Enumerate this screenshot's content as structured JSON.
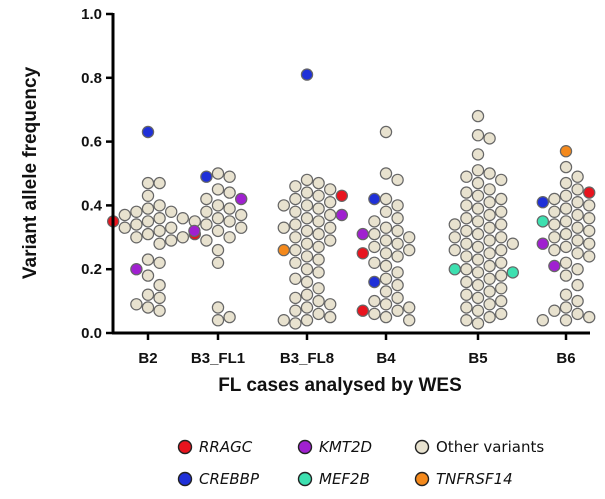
{
  "chart_data": {
    "type": "scatter",
    "title": "",
    "xlabel": "FL cases analysed by WES",
    "ylabel": "Variant allele frequency",
    "ylim": [
      0.0,
      1.0
    ],
    "yticks": [
      "0.0",
      "0.2",
      "0.4",
      "0.6",
      "0.8",
      "1.0"
    ],
    "categories": [
      "B2",
      "B3_FL1",
      "B3_FL8",
      "B4",
      "B5",
      "B6"
    ],
    "grid": false,
    "legend_position": "bottom",
    "series": [
      {
        "name": "RRAGC",
        "color": "#e8141e",
        "italic": true,
        "points": [
          [
            "B2",
            0.35
          ],
          [
            "B3_FL1",
            0.31
          ],
          [
            "B3_FL8",
            0.43
          ],
          [
            "B4",
            0.25
          ],
          [
            "B4",
            0.07
          ],
          [
            "B6",
            0.44
          ]
        ]
      },
      {
        "name": "KMT2D",
        "color": "#a020d0",
        "italic": true,
        "points": [
          [
            "B2",
            0.32
          ],
          [
            "B2",
            0.2
          ],
          [
            "B3_FL1",
            0.42
          ],
          [
            "B3_FL8",
            0.37
          ],
          [
            "B4",
            0.31
          ],
          [
            "B6",
            0.28
          ],
          [
            "B6",
            0.21
          ]
        ]
      },
      {
        "name": "Other variants",
        "color": "#e8e2cf",
        "italic": false,
        "points": [
          [
            "B2",
            0.47
          ],
          [
            "B2",
            0.47
          ],
          [
            "B2",
            0.43
          ],
          [
            "B2",
            0.4
          ],
          [
            "B2",
            0.39
          ],
          [
            "B2",
            0.38
          ],
          [
            "B2",
            0.38
          ],
          [
            "B2",
            0.37
          ],
          [
            "B2",
            0.36
          ],
          [
            "B2",
            0.36
          ],
          [
            "B2",
            0.35
          ],
          [
            "B2",
            0.34
          ],
          [
            "B2",
            0.33
          ],
          [
            "B2",
            0.33
          ],
          [
            "B2",
            0.32
          ],
          [
            "B2",
            0.31
          ],
          [
            "B2",
            0.3
          ],
          [
            "B2",
            0.3
          ],
          [
            "B2",
            0.29
          ],
          [
            "B2",
            0.28
          ],
          [
            "B2",
            0.23
          ],
          [
            "B2",
            0.22
          ],
          [
            "B2",
            0.18
          ],
          [
            "B2",
            0.15
          ],
          [
            "B2",
            0.12
          ],
          [
            "B2",
            0.11
          ],
          [
            "B2",
            0.09
          ],
          [
            "B2",
            0.08
          ],
          [
            "B2",
            0.07
          ],
          [
            "B3_FL1",
            0.5
          ],
          [
            "B3_FL1",
            0.49
          ],
          [
            "B3_FL1",
            0.45
          ],
          [
            "B3_FL1",
            0.44
          ],
          [
            "B3_FL1",
            0.42
          ],
          [
            "B3_FL1",
            0.4
          ],
          [
            "B3_FL1",
            0.39
          ],
          [
            "B3_FL1",
            0.38
          ],
          [
            "B3_FL1",
            0.37
          ],
          [
            "B3_FL1",
            0.36
          ],
          [
            "B3_FL1",
            0.35
          ],
          [
            "B3_FL1",
            0.35
          ],
          [
            "B3_FL1",
            0.34
          ],
          [
            "B3_FL1",
            0.33
          ],
          [
            "B3_FL1",
            0.32
          ],
          [
            "B3_FL1",
            0.3
          ],
          [
            "B3_FL1",
            0.29
          ],
          [
            "B3_FL1",
            0.26
          ],
          [
            "B3_FL1",
            0.22
          ],
          [
            "B3_FL1",
            0.08
          ],
          [
            "B3_FL1",
            0.05
          ],
          [
            "B3_FL1",
            0.04
          ],
          [
            "B3_FL8",
            0.48
          ],
          [
            "B3_FL8",
            0.47
          ],
          [
            "B3_FL8",
            0.46
          ],
          [
            "B3_FL8",
            0.45
          ],
          [
            "B3_FL8",
            0.44
          ],
          [
            "B3_FL8",
            0.43
          ],
          [
            "B3_FL8",
            0.42
          ],
          [
            "B3_FL8",
            0.41
          ],
          [
            "B3_FL8",
            0.4
          ],
          [
            "B3_FL8",
            0.4
          ],
          [
            "B3_FL8",
            0.39
          ],
          [
            "B3_FL8",
            0.38
          ],
          [
            "B3_FL8",
            0.37
          ],
          [
            "B3_FL8",
            0.36
          ],
          [
            "B3_FL8",
            0.35
          ],
          [
            "B3_FL8",
            0.34
          ],
          [
            "B3_FL8",
            0.33
          ],
          [
            "B3_FL8",
            0.33
          ],
          [
            "B3_FL8",
            0.32
          ],
          [
            "B3_FL8",
            0.31
          ],
          [
            "B3_FL8",
            0.3
          ],
          [
            "B3_FL8",
            0.29
          ],
          [
            "B3_FL8",
            0.28
          ],
          [
            "B3_FL8",
            0.27
          ],
          [
            "B3_FL8",
            0.26
          ],
          [
            "B3_FL8",
            0.24
          ],
          [
            "B3_FL8",
            0.23
          ],
          [
            "B3_FL8",
            0.22
          ],
          [
            "B3_FL8",
            0.2
          ],
          [
            "B3_FL8",
            0.19
          ],
          [
            "B3_FL8",
            0.17
          ],
          [
            "B3_FL8",
            0.16
          ],
          [
            "B3_FL8",
            0.14
          ],
          [
            "B3_FL8",
            0.12
          ],
          [
            "B3_FL8",
            0.11
          ],
          [
            "B3_FL8",
            0.1
          ],
          [
            "B3_FL8",
            0.09
          ],
          [
            "B3_FL8",
            0.08
          ],
          [
            "B3_FL8",
            0.07
          ],
          [
            "B3_FL8",
            0.06
          ],
          [
            "B3_FL8",
            0.05
          ],
          [
            "B3_FL8",
            0.04
          ],
          [
            "B3_FL8",
            0.04
          ],
          [
            "B3_FL8",
            0.03
          ],
          [
            "B4",
            0.63
          ],
          [
            "B4",
            0.5
          ],
          [
            "B4",
            0.48
          ],
          [
            "B4",
            0.42
          ],
          [
            "B4",
            0.4
          ],
          [
            "B4",
            0.38
          ],
          [
            "B4",
            0.36
          ],
          [
            "B4",
            0.35
          ],
          [
            "B4",
            0.33
          ],
          [
            "B4",
            0.32
          ],
          [
            "B4",
            0.31
          ],
          [
            "B4",
            0.3
          ],
          [
            "B4",
            0.29
          ],
          [
            "B4",
            0.28
          ],
          [
            "B4",
            0.27
          ],
          [
            "B4",
            0.26
          ],
          [
            "B4",
            0.25
          ],
          [
            "B4",
            0.24
          ],
          [
            "B4",
            0.22
          ],
          [
            "B4",
            0.21
          ],
          [
            "B4",
            0.19
          ],
          [
            "B4",
            0.17
          ],
          [
            "B4",
            0.15
          ],
          [
            "B4",
            0.13
          ],
          [
            "B4",
            0.11
          ],
          [
            "B4",
            0.1
          ],
          [
            "B4",
            0.09
          ],
          [
            "B4",
            0.08
          ],
          [
            "B4",
            0.07
          ],
          [
            "B4",
            0.06
          ],
          [
            "B4",
            0.05
          ],
          [
            "B4",
            0.04
          ],
          [
            "B5",
            0.68
          ],
          [
            "B5",
            0.62
          ],
          [
            "B5",
            0.61
          ],
          [
            "B5",
            0.56
          ],
          [
            "B5",
            0.51
          ],
          [
            "B5",
            0.5
          ],
          [
            "B5",
            0.49
          ],
          [
            "B5",
            0.48
          ],
          [
            "B5",
            0.47
          ],
          [
            "B5",
            0.45
          ],
          [
            "B5",
            0.44
          ],
          [
            "B5",
            0.43
          ],
          [
            "B5",
            0.42
          ],
          [
            "B5",
            0.41
          ],
          [
            "B5",
            0.4
          ],
          [
            "B5",
            0.39
          ],
          [
            "B5",
            0.38
          ],
          [
            "B5",
            0.37
          ],
          [
            "B5",
            0.36
          ],
          [
            "B5",
            0.35
          ],
          [
            "B5",
            0.34
          ],
          [
            "B5",
            0.34
          ],
          [
            "B5",
            0.33
          ],
          [
            "B5",
            0.32
          ],
          [
            "B5",
            0.31
          ],
          [
            "B5",
            0.3
          ],
          [
            "B5",
            0.3
          ],
          [
            "B5",
            0.29
          ],
          [
            "B5",
            0.28
          ],
          [
            "B5",
            0.28
          ],
          [
            "B5",
            0.27
          ],
          [
            "B5",
            0.26
          ],
          [
            "B5",
            0.26
          ],
          [
            "B5",
            0.25
          ],
          [
            "B5",
            0.24
          ],
          [
            "B5",
            0.23
          ],
          [
            "B5",
            0.22
          ],
          [
            "B5",
            0.21
          ],
          [
            "B5",
            0.2
          ],
          [
            "B5",
            0.19
          ],
          [
            "B5",
            0.18
          ],
          [
            "B5",
            0.17
          ],
          [
            "B5",
            0.16
          ],
          [
            "B5",
            0.15
          ],
          [
            "B5",
            0.14
          ],
          [
            "B5",
            0.13
          ],
          [
            "B5",
            0.12
          ],
          [
            "B5",
            0.11
          ],
          [
            "B5",
            0.1
          ],
          [
            "B5",
            0.09
          ],
          [
            "B5",
            0.08
          ],
          [
            "B5",
            0.07
          ],
          [
            "B5",
            0.06
          ],
          [
            "B5",
            0.05
          ],
          [
            "B5",
            0.04
          ],
          [
            "B5",
            0.03
          ],
          [
            "B6",
            0.52
          ],
          [
            "B6",
            0.49
          ],
          [
            "B6",
            0.47
          ],
          [
            "B6",
            0.45
          ],
          [
            "B6",
            0.43
          ],
          [
            "B6",
            0.42
          ],
          [
            "B6",
            0.41
          ],
          [
            "B6",
            0.4
          ],
          [
            "B6",
            0.39
          ],
          [
            "B6",
            0.38
          ],
          [
            "B6",
            0.37
          ],
          [
            "B6",
            0.36
          ],
          [
            "B6",
            0.35
          ],
          [
            "B6",
            0.34
          ],
          [
            "B6",
            0.33
          ],
          [
            "B6",
            0.32
          ],
          [
            "B6",
            0.31
          ],
          [
            "B6",
            0.3
          ],
          [
            "B6",
            0.29
          ],
          [
            "B6",
            0.28
          ],
          [
            "B6",
            0.27
          ],
          [
            "B6",
            0.26
          ],
          [
            "B6",
            0.25
          ],
          [
            "B6",
            0.24
          ],
          [
            "B6",
            0.22
          ],
          [
            "B6",
            0.2
          ],
          [
            "B6",
            0.18
          ],
          [
            "B6",
            0.15
          ],
          [
            "B6",
            0.12
          ],
          [
            "B6",
            0.1
          ],
          [
            "B6",
            0.08
          ],
          [
            "B6",
            0.07
          ],
          [
            "B6",
            0.06
          ],
          [
            "B6",
            0.05
          ],
          [
            "B6",
            0.04
          ],
          [
            "B6",
            0.04
          ]
        ]
      },
      {
        "name": "CREBBP",
        "color": "#1f30d8",
        "italic": true,
        "points": [
          [
            "B2",
            0.63
          ],
          [
            "B3_FL1",
            0.49
          ],
          [
            "B3_FL8",
            0.81
          ],
          [
            "B4",
            0.42
          ],
          [
            "B4",
            0.16
          ],
          [
            "B6",
            0.41
          ]
        ]
      },
      {
        "name": "MEF2B",
        "color": "#3de0b0",
        "italic": true,
        "points": [
          [
            "B5",
            0.2
          ],
          [
            "B5",
            0.19
          ],
          [
            "B6",
            0.35
          ]
        ]
      },
      {
        "name": "TNFRSF14",
        "color": "#f4891c",
        "italic": true,
        "points": [
          [
            "B3_FL8",
            0.26
          ],
          [
            "B6",
            0.57
          ]
        ]
      }
    ]
  }
}
